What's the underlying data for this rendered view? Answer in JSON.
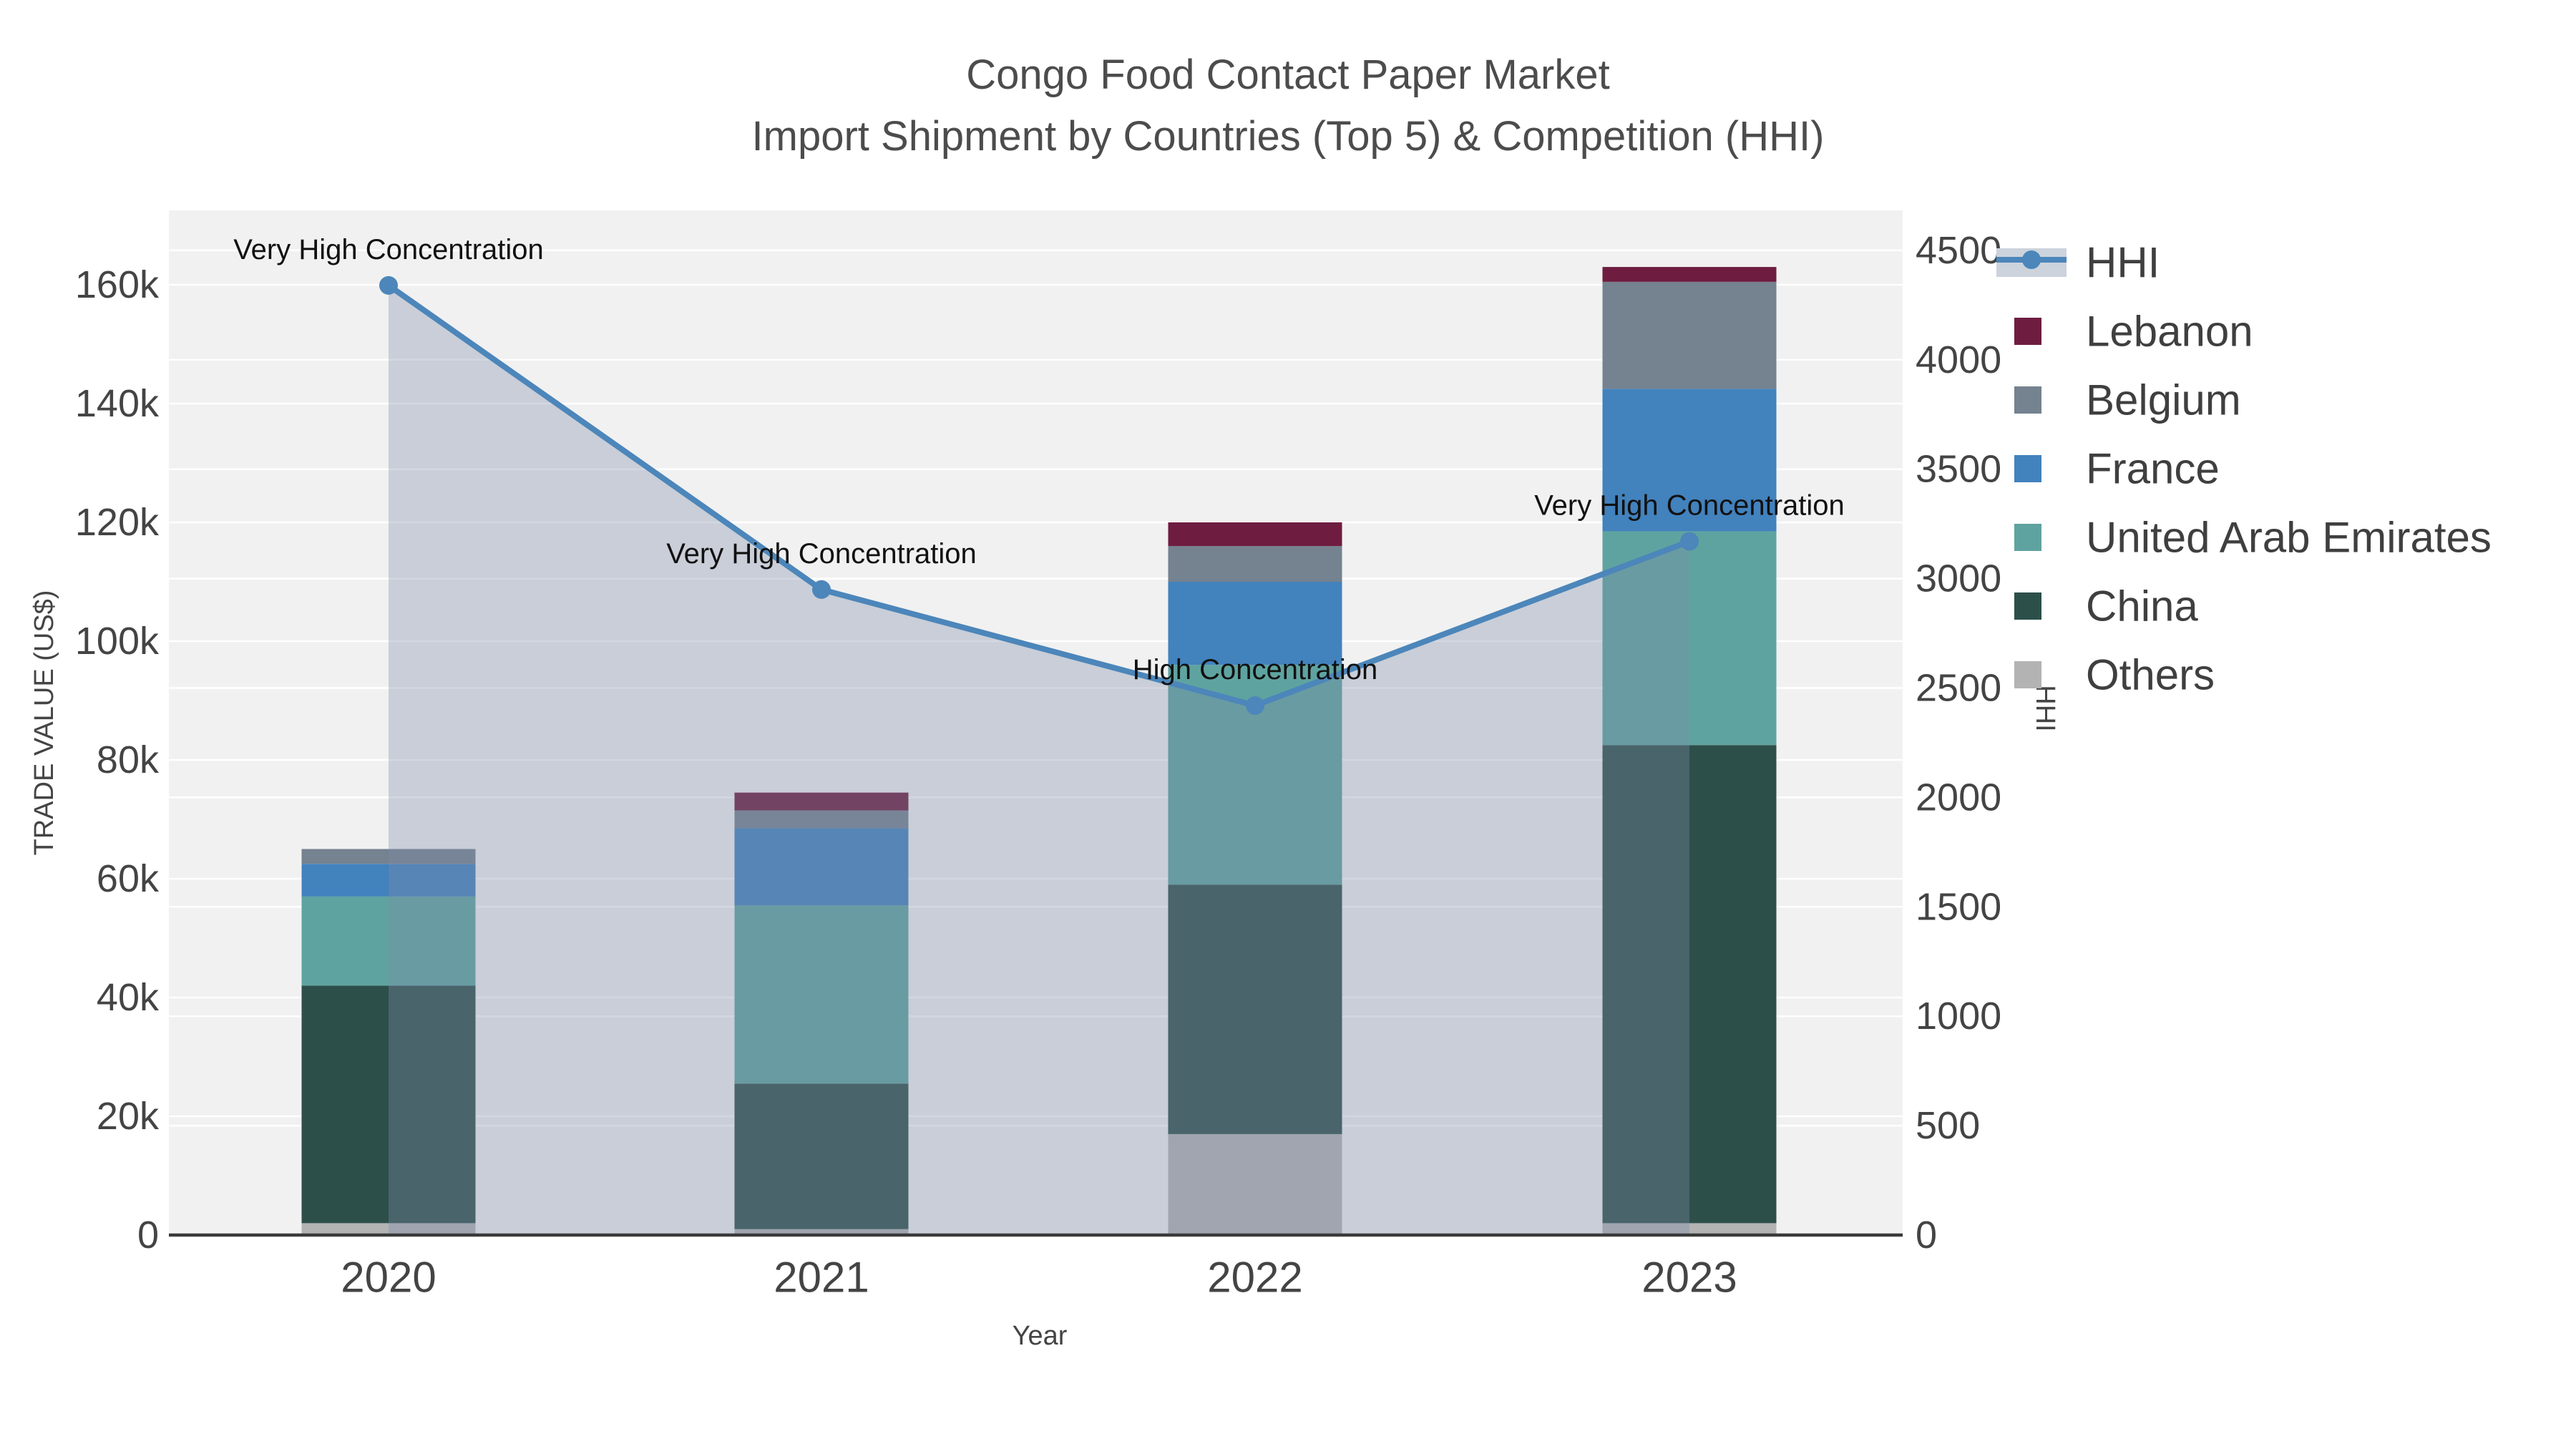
{
  "title": {
    "line1": "Congo Food Contact Paper Market",
    "line2": "Import Shipment by Countries (Top 5) & Competition (HHI)"
  },
  "chart_data": {
    "type": "bar",
    "subtype": "stacked-bars-with-line-overlay",
    "categories": [
      "2020",
      "2021",
      "2022",
      "2023"
    ],
    "bar_unit": "US$",
    "bar_series": [
      {
        "name": "Others",
        "color": "#b3b3b3",
        "values": [
          2000,
          1000,
          17000,
          2000
        ]
      },
      {
        "name": "China",
        "color": "#2d4f4a",
        "values": [
          40000,
          24500,
          42000,
          80500
        ]
      },
      {
        "name": "United Arab Emirates",
        "color": "#5fa3a0",
        "values": [
          15000,
          30000,
          37000,
          36000
        ]
      },
      {
        "name": "France",
        "color": "#4282bd",
        "values": [
          5500,
          13000,
          14000,
          24000
        ]
      },
      {
        "name": "Belgium",
        "color": "#75828f",
        "values": [
          2500,
          3000,
          6000,
          18000
        ]
      },
      {
        "name": "Lebanon",
        "color": "#6e1d40",
        "values": [
          0,
          3000,
          4000,
          2500
        ]
      }
    ],
    "line_series": {
      "name": "HHI",
      "color": "#4c86ba",
      "fill_color": "rgba(125,139,168,0.35)",
      "values": [
        4340,
        2950,
        2420,
        3170
      ]
    },
    "annotations": [
      {
        "category": "2020",
        "text": "Very High Concentration"
      },
      {
        "category": "2021",
        "text": "Very High Concentration"
      },
      {
        "category": "2022",
        "text": "High Concentration"
      },
      {
        "category": "2023",
        "text": "Very High Concentration"
      }
    ],
    "axes": {
      "x_title": "Year",
      "y_left": {
        "title": "TRADE VALUE (US$)",
        "tick_values": [
          0,
          20000,
          40000,
          60000,
          80000,
          100000,
          120000,
          140000,
          160000
        ],
        "tick_labels": [
          "0",
          "20k",
          "40k",
          "60k",
          "80k",
          "100k",
          "120k",
          "140k",
          "160k"
        ]
      },
      "y_right": {
        "title": "HHI",
        "tick_values": [
          0,
          500,
          1000,
          1500,
          2000,
          2500,
          3000,
          3500,
          4000,
          4500
        ],
        "tick_labels": [
          "0",
          "500",
          "1000",
          "1500",
          "2000",
          "2500",
          "3000",
          "3500",
          "4000",
          "4500"
        ]
      }
    },
    "legend": [
      "HHI",
      "Lebanon",
      "Belgium",
      "France",
      "United Arab Emirates",
      "China",
      "Others"
    ],
    "style": {
      "plot_bg": "#f1f1f1",
      "grid_color": "#ffffff",
      "axis_line_color": "#3a3a3a",
      "tick_color": "#444444",
      "annotation_color": "#111111",
      "legend_text_color": "#3f3f3f",
      "hhi_band_color": "#ccd3dd"
    }
  }
}
